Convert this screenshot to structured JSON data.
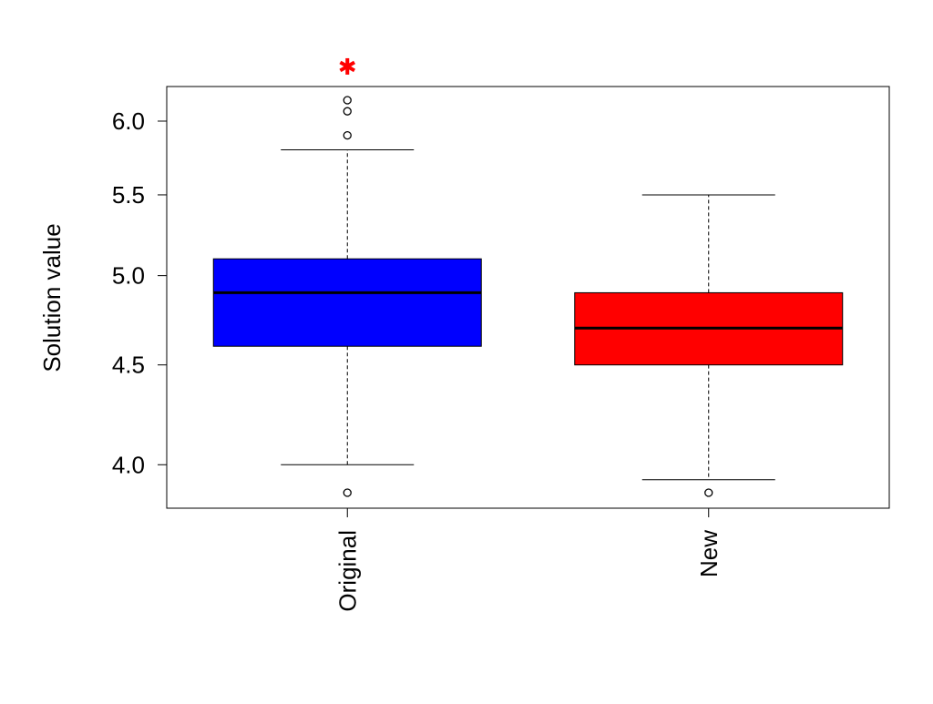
{
  "chart_data": {
    "type": "boxplot",
    "title": "",
    "xlabel": "",
    "ylabel": "Solution value",
    "y_scale": "log",
    "ylim": [
      3.8,
      6.25
    ],
    "yticks": [
      "4.0",
      "4.5",
      "5.0",
      "5.5",
      "6.0"
    ],
    "grid": false,
    "categories": [
      "Original",
      "New"
    ],
    "boxes": [
      {
        "category": "Original",
        "color": "#0000ff",
        "whisker_low": 4.0,
        "q1": 4.6,
        "median": 4.9,
        "q3": 5.1,
        "whisker_high": 5.8,
        "outliers": [
          3.87,
          5.9,
          6.07,
          6.15
        ]
      },
      {
        "category": "New",
        "color": "#ff0000",
        "whisker_low": 3.93,
        "q1": 4.5,
        "median": 4.7,
        "q3": 4.9,
        "whisker_high": 5.5,
        "outliers": [
          3.87
        ]
      }
    ],
    "annotations": [
      {
        "type": "star-marker",
        "category": "Original",
        "y": 6.4,
        "color": "#ff0000"
      }
    ]
  }
}
